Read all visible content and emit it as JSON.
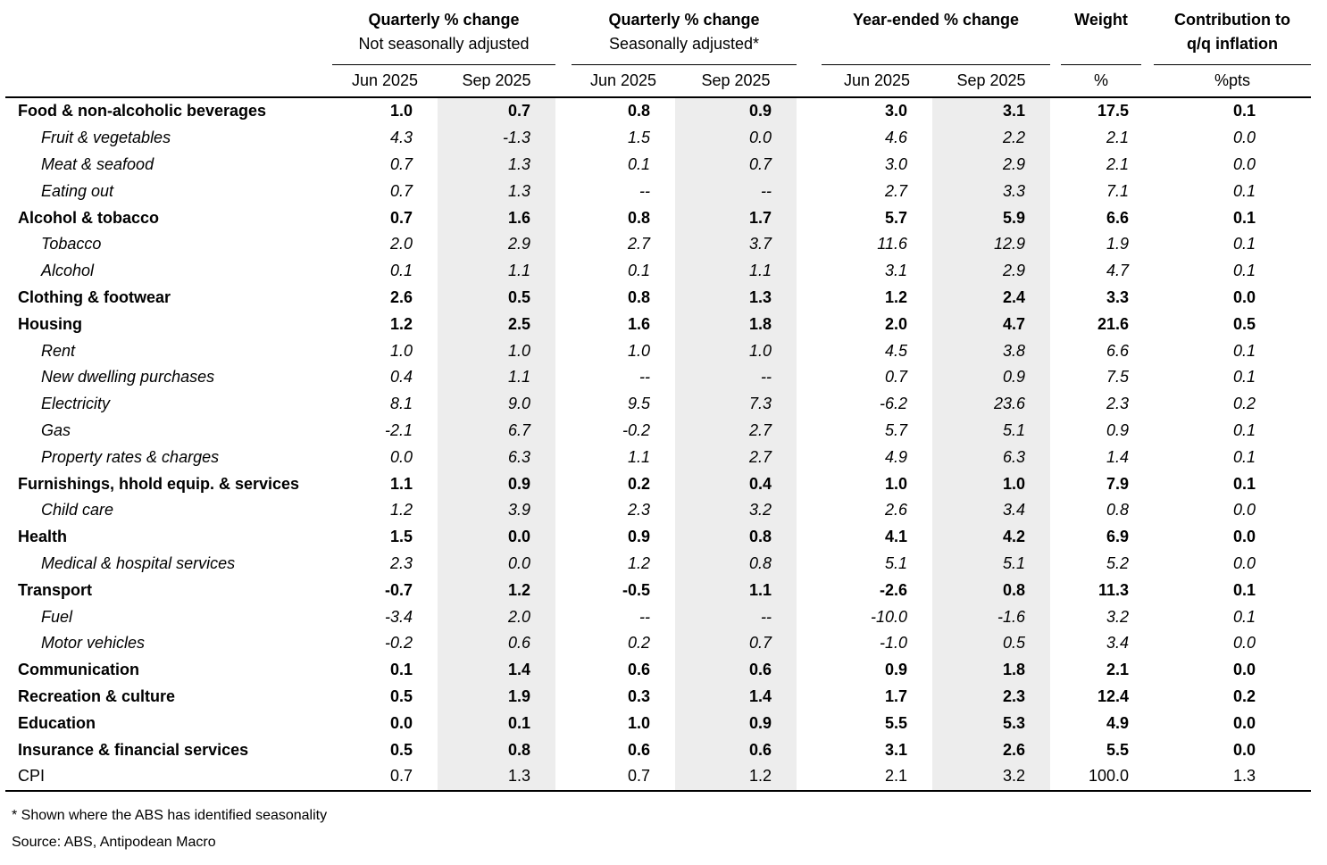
{
  "chart_data": {
    "type": "table",
    "header": {
      "groups": [
        {
          "title": "Quarterly % change",
          "subtitle": "Not seasonally adjusted",
          "subtitle_bold": false,
          "cols": [
            "Jun 2025",
            "Sep 2025"
          ]
        },
        {
          "title": "Quarterly % change",
          "subtitle": "Seasonally adjusted*",
          "subtitle_bold": false,
          "cols": [
            "Jun 2025",
            "Sep 2025"
          ]
        },
        {
          "title": "Year-ended % change",
          "subtitle": "",
          "subtitle_bold": false,
          "cols": [
            "Jun 2025",
            "Sep 2025"
          ]
        },
        {
          "title": "Weight",
          "subtitle": "",
          "subtitle_bold": false,
          "cols": [
            "%"
          ]
        },
        {
          "title": "Contribution to",
          "subtitle": "q/q inflation",
          "subtitle_bold": true,
          "cols": [
            "%pts"
          ]
        }
      ]
    },
    "value_column_keys": [
      "nsa_jun_2025",
      "nsa_sep_2025",
      "sa_jun_2025",
      "sa_sep_2025",
      "ye_jun_2025",
      "ye_sep_2025",
      "weight_pct",
      "contribution_ppts"
    ],
    "rows": [
      {
        "label": "Food & non-alcoholic beverages",
        "style": "category",
        "values": [
          "1.0",
          "0.7",
          "0.8",
          "0.9",
          "3.0",
          "3.1",
          "17.5",
          "0.1"
        ]
      },
      {
        "label": "Fruit & vegetables",
        "style": "sub",
        "values": [
          "4.3",
          "-1.3",
          "1.5",
          "0.0",
          "4.6",
          "2.2",
          "2.1",
          "0.0"
        ]
      },
      {
        "label": "Meat & seafood",
        "style": "sub",
        "values": [
          "0.7",
          "1.3",
          "0.1",
          "0.7",
          "3.0",
          "2.9",
          "2.1",
          "0.0"
        ]
      },
      {
        "label": "Eating out",
        "style": "sub",
        "values": [
          "0.7",
          "1.3",
          "--",
          "--",
          "2.7",
          "3.3",
          "7.1",
          "0.1"
        ]
      },
      {
        "label": "Alcohol & tobacco",
        "style": "category",
        "values": [
          "0.7",
          "1.6",
          "0.8",
          "1.7",
          "5.7",
          "5.9",
          "6.6",
          "0.1"
        ]
      },
      {
        "label": "Tobacco",
        "style": "sub",
        "values": [
          "2.0",
          "2.9",
          "2.7",
          "3.7",
          "11.6",
          "12.9",
          "1.9",
          "0.1"
        ]
      },
      {
        "label": "Alcohol",
        "style": "sub",
        "values": [
          "0.1",
          "1.1",
          "0.1",
          "1.1",
          "3.1",
          "2.9",
          "4.7",
          "0.1"
        ]
      },
      {
        "label": "Clothing & footwear",
        "style": "category",
        "values": [
          "2.6",
          "0.5",
          "0.8",
          "1.3",
          "1.2",
          "2.4",
          "3.3",
          "0.0"
        ]
      },
      {
        "label": "Housing",
        "style": "category",
        "values": [
          "1.2",
          "2.5",
          "1.6",
          "1.8",
          "2.0",
          "4.7",
          "21.6",
          "0.5"
        ]
      },
      {
        "label": "Rent",
        "style": "sub",
        "values": [
          "1.0",
          "1.0",
          "1.0",
          "1.0",
          "4.5",
          "3.8",
          "6.6",
          "0.1"
        ]
      },
      {
        "label": "New dwelling purchases",
        "style": "sub",
        "values": [
          "0.4",
          "1.1",
          "--",
          "--",
          "0.7",
          "0.9",
          "7.5",
          "0.1"
        ]
      },
      {
        "label": "Electricity",
        "style": "sub",
        "values": [
          "8.1",
          "9.0",
          "9.5",
          "7.3",
          "-6.2",
          "23.6",
          "2.3",
          "0.2"
        ]
      },
      {
        "label": "Gas",
        "style": "sub",
        "values": [
          "-2.1",
          "6.7",
          "-0.2",
          "2.7",
          "5.7",
          "5.1",
          "0.9",
          "0.1"
        ]
      },
      {
        "label": "Property rates & charges",
        "style": "sub",
        "values": [
          "0.0",
          "6.3",
          "1.1",
          "2.7",
          "4.9",
          "6.3",
          "1.4",
          "0.1"
        ]
      },
      {
        "label": "Furnishings, hhold equip. & services",
        "style": "category",
        "values": [
          "1.1",
          "0.9",
          "0.2",
          "0.4",
          "1.0",
          "1.0",
          "7.9",
          "0.1"
        ]
      },
      {
        "label": "Child care",
        "style": "sub",
        "values": [
          "1.2",
          "3.9",
          "2.3",
          "3.2",
          "2.6",
          "3.4",
          "0.8",
          "0.0"
        ]
      },
      {
        "label": "Health",
        "style": "category",
        "values": [
          "1.5",
          "0.0",
          "0.9",
          "0.8",
          "4.1",
          "4.2",
          "6.9",
          "0.0"
        ]
      },
      {
        "label": "Medical & hospital services",
        "style": "sub",
        "values": [
          "2.3",
          "0.0",
          "1.2",
          "0.8",
          "5.1",
          "5.1",
          "5.2",
          "0.0"
        ]
      },
      {
        "label": "Transport",
        "style": "category",
        "values": [
          "-0.7",
          "1.2",
          "-0.5",
          "1.1",
          "-2.6",
          "0.8",
          "11.3",
          "0.1"
        ]
      },
      {
        "label": "Fuel",
        "style": "sub",
        "values": [
          "-3.4",
          "2.0",
          "--",
          "--",
          "-10.0",
          "-1.6",
          "3.2",
          "0.1"
        ]
      },
      {
        "label": "Motor vehicles",
        "style": "sub",
        "values": [
          "-0.2",
          "0.6",
          "0.2",
          "0.7",
          "-1.0",
          "0.5",
          "3.4",
          "0.0"
        ]
      },
      {
        "label": "Communication",
        "style": "category",
        "values": [
          "0.1",
          "1.4",
          "0.6",
          "0.6",
          "0.9",
          "1.8",
          "2.1",
          "0.0"
        ]
      },
      {
        "label": "Recreation & culture",
        "style": "category",
        "values": [
          "0.5",
          "1.9",
          "0.3",
          "1.4",
          "1.7",
          "2.3",
          "12.4",
          "0.2"
        ]
      },
      {
        "label": "Education",
        "style": "category",
        "values": [
          "0.0",
          "0.1",
          "1.0",
          "0.9",
          "5.5",
          "5.3",
          "4.9",
          "0.0"
        ]
      },
      {
        "label": "Insurance & financial services",
        "style": "category",
        "values": [
          "0.5",
          "0.8",
          "0.6",
          "0.6",
          "3.1",
          "2.6",
          "5.5",
          "0.0"
        ]
      },
      {
        "label": "CPI",
        "style": "plain",
        "values": [
          "0.7",
          "1.3",
          "0.7",
          "1.2",
          "2.1",
          "3.2",
          "100.0",
          "1.3"
        ]
      }
    ],
    "footnotes": [
      "* Shown where the ABS has identified seasonality",
      "Source: ABS, Antipodean Macro"
    ],
    "colors": {
      "shaded_column": "#ededed",
      "text": "#000000",
      "background": "#ffffff"
    },
    "layout_hints": {
      "shaded_columns": [
        "nsa_sep_2025",
        "sa_sep_2025",
        "ye_sep_2025"
      ],
      "grid": false
    }
  }
}
